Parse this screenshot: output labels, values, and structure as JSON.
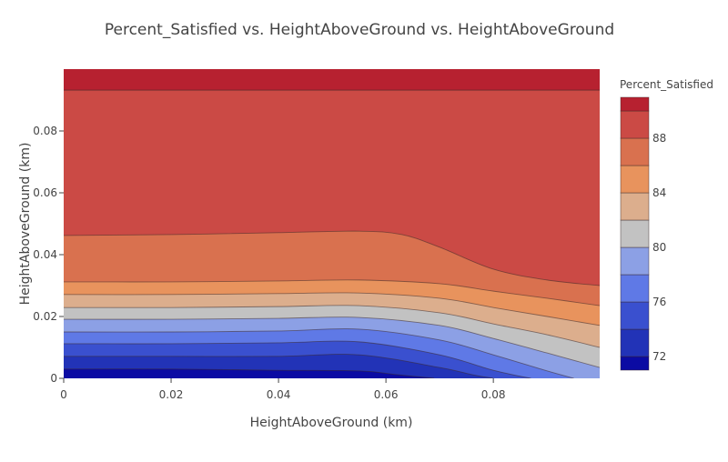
{
  "chart_data": {
    "type": "contour",
    "title": "Percent_Satisfied vs. HeightAboveGround vs. HeightAboveGround",
    "xlabel": "HeightAboveGround (km)",
    "ylabel": "HeightAboveGround (km)",
    "xlim": [
      0,
      0.0998
    ],
    "ylim": [
      0,
      0.1
    ],
    "x_ticks": [
      {
        "value": 0,
        "label": "0"
      },
      {
        "value": 0.02,
        "label": "0.02"
      },
      {
        "value": 0.04,
        "label": "0.04"
      },
      {
        "value": 0.06,
        "label": "0.06"
      },
      {
        "value": 0.08,
        "label": "0.08"
      }
    ],
    "y_ticks": [
      {
        "value": 0,
        "label": "0"
      },
      {
        "value": 0.02,
        "label": "0.02"
      },
      {
        "value": 0.04,
        "label": "0.04"
      },
      {
        "value": 0.06,
        "label": "0.06"
      },
      {
        "value": 0.08,
        "label": "0.08"
      }
    ],
    "colorbar": {
      "title": "Percent_Satisfied",
      "range": [
        71,
        91
      ],
      "ticks": [
        {
          "value": 72,
          "label": "72"
        },
        {
          "value": 76,
          "label": "76"
        },
        {
          "value": 80,
          "label": "80"
        },
        {
          "value": 84,
          "label": "84"
        },
        {
          "value": 88,
          "label": "88"
        }
      ],
      "placement": "right"
    },
    "levels": [
      72,
      74,
      76,
      78,
      80,
      82,
      84,
      86,
      88,
      90
    ],
    "band_colors": [
      "#0b0ba3",
      "#2233b7",
      "#3a50cf",
      "#5f79e6",
      "#8ca0e5",
      "#c2c2c2",
      "#dcae8d",
      "#e8935d",
      "#d9714f",
      "#cb4a45",
      "#b72130"
    ],
    "contours": [
      {
        "level": 72,
        "points": [
          [
            0,
            0.003
          ],
          [
            0.02,
            0.003
          ],
          [
            0.04,
            0.0026
          ],
          [
            0.055,
            0.0024
          ],
          [
            0.062,
            0.0012
          ],
          [
            0.069,
            0
          ]
        ]
      },
      {
        "level": 74,
        "points": [
          [
            0,
            0.0071
          ],
          [
            0.02,
            0.0071
          ],
          [
            0.04,
            0.0071
          ],
          [
            0.055,
            0.0076
          ],
          [
            0.07,
            0.0035
          ],
          [
            0.076,
            0.0012
          ],
          [
            0.08,
            0
          ]
        ]
      },
      {
        "level": 76,
        "points": [
          [
            0,
            0.0112
          ],
          [
            0.02,
            0.0112
          ],
          [
            0.04,
            0.0115
          ],
          [
            0.055,
            0.0118
          ],
          [
            0.07,
            0.0076
          ],
          [
            0.08,
            0.0026
          ],
          [
            0.087,
            0
          ]
        ]
      },
      {
        "level": 78,
        "points": [
          [
            0,
            0.015
          ],
          [
            0.02,
            0.015
          ],
          [
            0.04,
            0.0153
          ],
          [
            0.055,
            0.0159
          ],
          [
            0.07,
            0.0124
          ],
          [
            0.08,
            0.0076
          ],
          [
            0.09,
            0.0024
          ],
          [
            0.095,
            0
          ]
        ]
      },
      {
        "level": 80,
        "points": [
          [
            0,
            0.0191
          ],
          [
            0.02,
            0.0191
          ],
          [
            0.04,
            0.0194
          ],
          [
            0.055,
            0.0197
          ],
          [
            0.07,
            0.0171
          ],
          [
            0.08,
            0.0129
          ],
          [
            0.09,
            0.0082
          ],
          [
            0.0998,
            0.0035
          ]
        ]
      },
      {
        "level": 82,
        "points": [
          [
            0,
            0.0229
          ],
          [
            0.02,
            0.0229
          ],
          [
            0.04,
            0.0232
          ],
          [
            0.055,
            0.0235
          ],
          [
            0.07,
            0.0212
          ],
          [
            0.08,
            0.0176
          ],
          [
            0.09,
            0.0141
          ],
          [
            0.0998,
            0.01
          ]
        ]
      },
      {
        "level": 84,
        "points": [
          [
            0,
            0.0271
          ],
          [
            0.02,
            0.0271
          ],
          [
            0.04,
            0.0274
          ],
          [
            0.055,
            0.0276
          ],
          [
            0.07,
            0.0259
          ],
          [
            0.08,
            0.0229
          ],
          [
            0.09,
            0.02
          ],
          [
            0.0998,
            0.0171
          ]
        ]
      },
      {
        "level": 86,
        "points": [
          [
            0,
            0.0312
          ],
          [
            0.02,
            0.0312
          ],
          [
            0.04,
            0.0315
          ],
          [
            0.055,
            0.0318
          ],
          [
            0.07,
            0.0306
          ],
          [
            0.08,
            0.0282
          ],
          [
            0.09,
            0.0259
          ],
          [
            0.0998,
            0.0235
          ]
        ]
      },
      {
        "level": 88,
        "points": [
          [
            0,
            0.0462
          ],
          [
            0.02,
            0.0465
          ],
          [
            0.04,
            0.0471
          ],
          [
            0.055,
            0.0476
          ],
          [
            0.063,
            0.0465
          ],
          [
            0.07,
            0.0424
          ],
          [
            0.08,
            0.0353
          ],
          [
            0.09,
            0.0318
          ],
          [
            0.0998,
            0.03
          ]
        ]
      },
      {
        "level": 90,
        "points": [
          [
            0,
            0.0932
          ],
          [
            0.0998,
            0.0932
          ]
        ]
      }
    ]
  }
}
